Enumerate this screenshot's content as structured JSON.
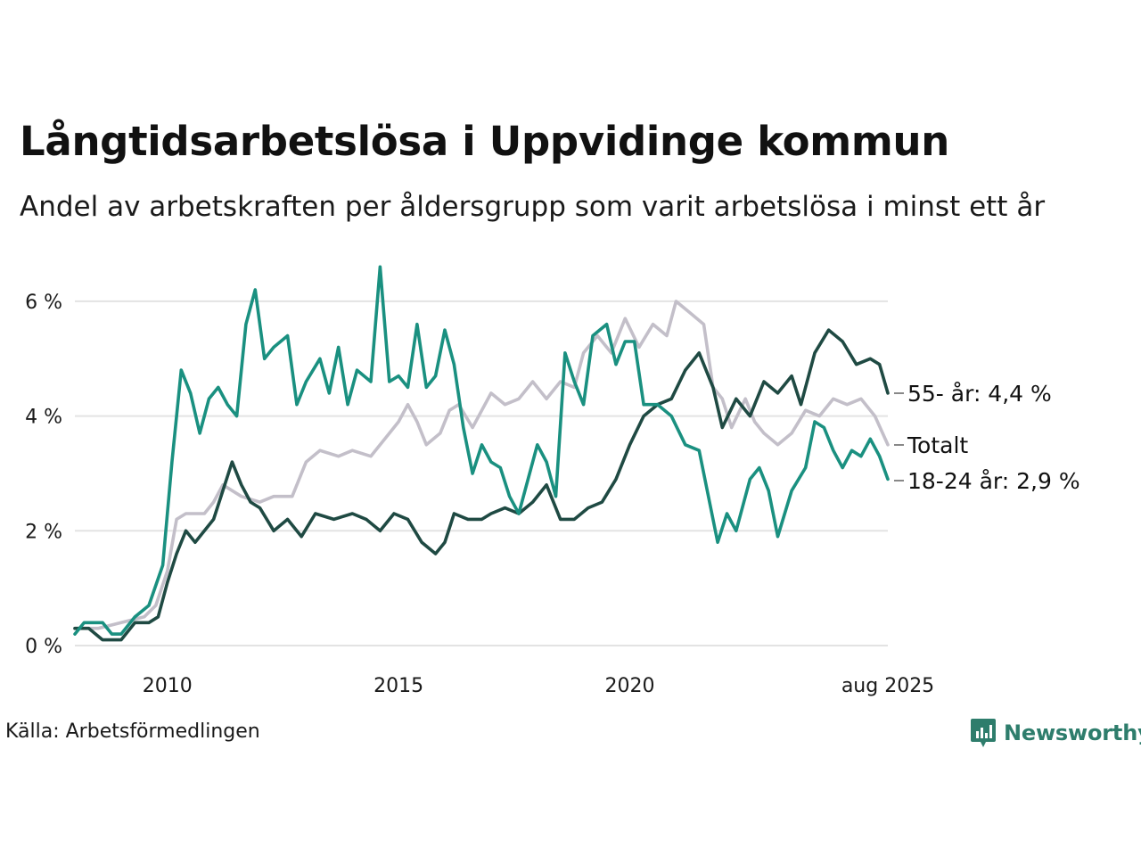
{
  "title": "Långtidsarbetslösa i Uppvidinge kommun",
  "subtitle": "Andel av arbetskraften per åldersgrupp som varit arbetslösa i minst ett år",
  "source": "Källa: Arbetsförmedlingen",
  "brand": "Newsworthy",
  "colors": {
    "totalt": "#c3bfc9",
    "age_55": "#1f4a43",
    "age_18_24": "#1a9080",
    "grid": "#e3e3e3",
    "brand": "#2e7d6c"
  },
  "chart_data": {
    "type": "line",
    "x_ticks": [
      {
        "x": 2010,
        "label": "2010"
      },
      {
        "x": 2015,
        "label": "2015"
      },
      {
        "x": 2020,
        "label": "2020"
      },
      {
        "x": 2025.58,
        "label": "aug 2025"
      }
    ],
    "y_ticks": [
      {
        "y": 0,
        "label": "0 %"
      },
      {
        "y": 2,
        "label": "2 %"
      },
      {
        "y": 4,
        "label": "4 %"
      },
      {
        "y": 6,
        "label": "6 %"
      }
    ],
    "xlim": [
      2008.0,
      2025.58
    ],
    "ylim": [
      0,
      6.9
    ],
    "grid": true,
    "series": [
      {
        "name": "Totalt",
        "label": "Totalt",
        "color": "#c3bfc9",
        "points": [
          [
            2008.0,
            0.3
          ],
          [
            2008.5,
            0.3
          ],
          [
            2009.0,
            0.4
          ],
          [
            2009.5,
            0.5
          ],
          [
            2009.75,
            0.7
          ],
          [
            2010.0,
            1.3
          ],
          [
            2010.2,
            2.2
          ],
          [
            2010.4,
            2.3
          ],
          [
            2010.8,
            2.3
          ],
          [
            2011.0,
            2.5
          ],
          [
            2011.2,
            2.8
          ],
          [
            2011.6,
            2.6
          ],
          [
            2012.0,
            2.5
          ],
          [
            2012.3,
            2.6
          ],
          [
            2012.7,
            2.6
          ],
          [
            2013.0,
            3.2
          ],
          [
            2013.3,
            3.4
          ],
          [
            2013.7,
            3.3
          ],
          [
            2014.0,
            3.4
          ],
          [
            2014.4,
            3.3
          ],
          [
            2014.8,
            3.7
          ],
          [
            2015.0,
            3.9
          ],
          [
            2015.2,
            4.2
          ],
          [
            2015.4,
            3.9
          ],
          [
            2015.6,
            3.5
          ],
          [
            2015.9,
            3.7
          ],
          [
            2016.1,
            4.1
          ],
          [
            2016.3,
            4.2
          ],
          [
            2016.6,
            3.8
          ],
          [
            2016.8,
            4.1
          ],
          [
            2017.0,
            4.4
          ],
          [
            2017.3,
            4.2
          ],
          [
            2017.6,
            4.3
          ],
          [
            2017.9,
            4.6
          ],
          [
            2018.2,
            4.3
          ],
          [
            2018.5,
            4.6
          ],
          [
            2018.8,
            4.5
          ],
          [
            2019.0,
            5.1
          ],
          [
            2019.3,
            5.4
          ],
          [
            2019.6,
            5.1
          ],
          [
            2019.9,
            5.7
          ],
          [
            2020.2,
            5.2
          ],
          [
            2020.5,
            5.6
          ],
          [
            2020.8,
            5.4
          ],
          [
            2021.0,
            6.0
          ],
          [
            2021.3,
            5.8
          ],
          [
            2021.6,
            5.6
          ],
          [
            2021.8,
            4.5
          ],
          [
            2022.0,
            4.3
          ],
          [
            2022.2,
            3.8
          ],
          [
            2022.5,
            4.3
          ],
          [
            2022.7,
            3.9
          ],
          [
            2022.9,
            3.7
          ],
          [
            2023.2,
            3.5
          ],
          [
            2023.5,
            3.7
          ],
          [
            2023.8,
            4.1
          ],
          [
            2024.1,
            4.0
          ],
          [
            2024.4,
            4.3
          ],
          [
            2024.7,
            4.2
          ],
          [
            2025.0,
            4.3
          ],
          [
            2025.3,
            4.0
          ],
          [
            2025.58,
            3.5
          ]
        ]
      },
      {
        "name": "55- år",
        "label": "55- år: 4,4 %",
        "color": "#1f4a43",
        "points": [
          [
            2008.0,
            0.3
          ],
          [
            2008.3,
            0.3
          ],
          [
            2008.6,
            0.1
          ],
          [
            2009.0,
            0.1
          ],
          [
            2009.3,
            0.4
          ],
          [
            2009.6,
            0.4
          ],
          [
            2009.8,
            0.5
          ],
          [
            2010.0,
            1.1
          ],
          [
            2010.2,
            1.6
          ],
          [
            2010.4,
            2.0
          ],
          [
            2010.6,
            1.8
          ],
          [
            2010.8,
            2.0
          ],
          [
            2011.0,
            2.2
          ],
          [
            2011.2,
            2.7
          ],
          [
            2011.4,
            3.2
          ],
          [
            2011.6,
            2.8
          ],
          [
            2011.8,
            2.5
          ],
          [
            2012.0,
            2.4
          ],
          [
            2012.3,
            2.0
          ],
          [
            2012.6,
            2.2
          ],
          [
            2012.9,
            1.9
          ],
          [
            2013.2,
            2.3
          ],
          [
            2013.6,
            2.2
          ],
          [
            2014.0,
            2.3
          ],
          [
            2014.3,
            2.2
          ],
          [
            2014.6,
            2.0
          ],
          [
            2014.9,
            2.3
          ],
          [
            2015.2,
            2.2
          ],
          [
            2015.5,
            1.8
          ],
          [
            2015.8,
            1.6
          ],
          [
            2016.0,
            1.8
          ],
          [
            2016.2,
            2.3
          ],
          [
            2016.5,
            2.2
          ],
          [
            2016.8,
            2.2
          ],
          [
            2017.0,
            2.3
          ],
          [
            2017.3,
            2.4
          ],
          [
            2017.6,
            2.3
          ],
          [
            2017.9,
            2.5
          ],
          [
            2018.2,
            2.8
          ],
          [
            2018.5,
            2.2
          ],
          [
            2018.8,
            2.2
          ],
          [
            2019.1,
            2.4
          ],
          [
            2019.4,
            2.5
          ],
          [
            2019.7,
            2.9
          ],
          [
            2020.0,
            3.5
          ],
          [
            2020.3,
            4.0
          ],
          [
            2020.6,
            4.2
          ],
          [
            2020.9,
            4.3
          ],
          [
            2021.2,
            4.8
          ],
          [
            2021.5,
            5.1
          ],
          [
            2021.8,
            4.5
          ],
          [
            2022.0,
            3.8
          ],
          [
            2022.3,
            4.3
          ],
          [
            2022.6,
            4.0
          ],
          [
            2022.9,
            4.6
          ],
          [
            2023.2,
            4.4
          ],
          [
            2023.5,
            4.7
          ],
          [
            2023.7,
            4.2
          ],
          [
            2024.0,
            5.1
          ],
          [
            2024.3,
            5.5
          ],
          [
            2024.6,
            5.3
          ],
          [
            2024.9,
            4.9
          ],
          [
            2025.2,
            5.0
          ],
          [
            2025.4,
            4.9
          ],
          [
            2025.58,
            4.4
          ]
        ]
      },
      {
        "name": "18-24 år",
        "label": "18-24 år: 2,9 %",
        "color": "#1a9080",
        "points": [
          [
            2008.0,
            0.2
          ],
          [
            2008.2,
            0.4
          ],
          [
            2008.6,
            0.4
          ],
          [
            2008.8,
            0.2
          ],
          [
            2009.0,
            0.2
          ],
          [
            2009.3,
            0.5
          ],
          [
            2009.6,
            0.7
          ],
          [
            2009.9,
            1.4
          ],
          [
            2010.1,
            3.2
          ],
          [
            2010.3,
            4.8
          ],
          [
            2010.5,
            4.4
          ],
          [
            2010.7,
            3.7
          ],
          [
            2010.9,
            4.3
          ],
          [
            2011.1,
            4.5
          ],
          [
            2011.3,
            4.2
          ],
          [
            2011.5,
            4.0
          ],
          [
            2011.7,
            5.6
          ],
          [
            2011.9,
            6.2
          ],
          [
            2012.1,
            5.0
          ],
          [
            2012.3,
            5.2
          ],
          [
            2012.6,
            5.4
          ],
          [
            2012.8,
            4.2
          ],
          [
            2013.0,
            4.6
          ],
          [
            2013.3,
            5.0
          ],
          [
            2013.5,
            4.4
          ],
          [
            2013.7,
            5.2
          ],
          [
            2013.9,
            4.2
          ],
          [
            2014.1,
            4.8
          ],
          [
            2014.4,
            4.6
          ],
          [
            2014.6,
            6.6
          ],
          [
            2014.8,
            4.6
          ],
          [
            2015.0,
            4.7
          ],
          [
            2015.2,
            4.5
          ],
          [
            2015.4,
            5.6
          ],
          [
            2015.6,
            4.5
          ],
          [
            2015.8,
            4.7
          ],
          [
            2016.0,
            5.5
          ],
          [
            2016.2,
            4.9
          ],
          [
            2016.4,
            3.8
          ],
          [
            2016.6,
            3.0
          ],
          [
            2016.8,
            3.5
          ],
          [
            2017.0,
            3.2
          ],
          [
            2017.2,
            3.1
          ],
          [
            2017.4,
            2.6
          ],
          [
            2017.6,
            2.3
          ],
          [
            2017.8,
            2.9
          ],
          [
            2018.0,
            3.5
          ],
          [
            2018.2,
            3.2
          ],
          [
            2018.4,
            2.6
          ],
          [
            2018.6,
            5.1
          ],
          [
            2018.8,
            4.6
          ],
          [
            2019.0,
            4.2
          ],
          [
            2019.2,
            5.4
          ],
          [
            2019.5,
            5.6
          ],
          [
            2019.7,
            4.9
          ],
          [
            2019.9,
            5.3
          ],
          [
            2020.1,
            5.3
          ],
          [
            2020.3,
            4.2
          ],
          [
            2020.6,
            4.2
          ],
          [
            2020.9,
            4.0
          ],
          [
            2021.2,
            3.5
          ],
          [
            2021.5,
            3.4
          ],
          [
            2021.7,
            2.6
          ],
          [
            2021.9,
            1.8
          ],
          [
            2022.1,
            2.3
          ],
          [
            2022.3,
            2.0
          ],
          [
            2022.6,
            2.9
          ],
          [
            2022.8,
            3.1
          ],
          [
            2023.0,
            2.7
          ],
          [
            2023.2,
            1.9
          ],
          [
            2023.5,
            2.7
          ],
          [
            2023.8,
            3.1
          ],
          [
            2024.0,
            3.9
          ],
          [
            2024.2,
            3.8
          ],
          [
            2024.4,
            3.4
          ],
          [
            2024.6,
            3.1
          ],
          [
            2024.8,
            3.4
          ],
          [
            2025.0,
            3.3
          ],
          [
            2025.2,
            3.6
          ],
          [
            2025.4,
            3.3
          ],
          [
            2025.58,
            2.9
          ]
        ]
      }
    ]
  }
}
